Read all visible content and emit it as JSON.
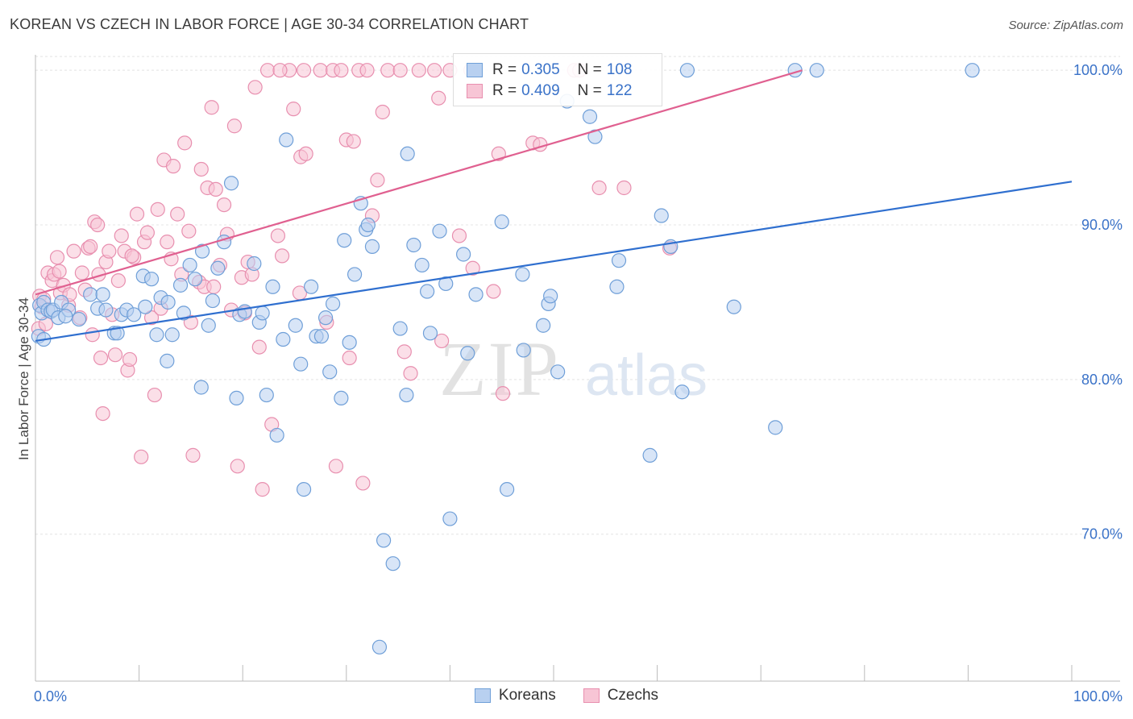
{
  "title": "KOREAN VS CZECH IN LABOR FORCE | AGE 30-34 CORRELATION CHART",
  "source": "Source: ZipAtlas.com",
  "watermark": {
    "zip": "ZIP",
    "atlas": "atlas"
  },
  "legend": {
    "r_label": "R =",
    "n_label": "N =",
    "items": [
      {
        "name": "Koreans",
        "r": "0.305",
        "n": "108",
        "fill": "#b8d0f0",
        "stroke": "#6f9fd8"
      },
      {
        "name": "Czechs",
        "r": "0.409",
        "n": "122",
        "fill": "#f7c5d5",
        "stroke": "#e88faf"
      }
    ]
  },
  "chart_data": {
    "type": "scatter",
    "title": "KOREAN VS CZECH IN LABOR FORCE | AGE 30-34 CORRELATION CHART",
    "xlabel": "",
    "ylabel": "In Labor Force | Age 30-34",
    "xlim": [
      0,
      100
    ],
    "ylim": [
      60.5,
      101
    ],
    "x_tick_labels": [
      "0.0%",
      "100.0%"
    ],
    "y_tick_labels": [
      "70.0%",
      "80.0%",
      "90.0%",
      "100.0%"
    ],
    "y_ticks": [
      70,
      80,
      90,
      100
    ],
    "grid": true,
    "legend_position": "top-center",
    "series": [
      {
        "name": "Koreans",
        "color": "#6f9fd8",
        "fill": "#b8d0f0",
        "trend": {
          "x": [
            0,
            100
          ],
          "y": [
            82.5,
            92.8
          ]
        },
        "points": [
          [
            0.3,
            82.8
          ],
          [
            0.4,
            84.8
          ],
          [
            0.6,
            84.3
          ],
          [
            0.8,
            85.0
          ],
          [
            1.2,
            84.5
          ],
          [
            1.5,
            84.4
          ],
          [
            1.7,
            84.5
          ],
          [
            2.2,
            84.0
          ],
          [
            2.5,
            85.0
          ],
          [
            3.2,
            84.5
          ],
          [
            4.2,
            83.9
          ],
          [
            5.3,
            85.5
          ],
          [
            6.0,
            84.6
          ],
          [
            6.5,
            85.5
          ],
          [
            6.8,
            84.5
          ],
          [
            7.6,
            83.0
          ],
          [
            7.9,
            83.0
          ],
          [
            8.3,
            84.2
          ],
          [
            8.8,
            84.5
          ],
          [
            9.5,
            84.2
          ],
          [
            10.4,
            86.7
          ],
          [
            10.6,
            84.7
          ],
          [
            11.2,
            86.5
          ],
          [
            11.7,
            82.9
          ],
          [
            12.1,
            85.3
          ],
          [
            12.7,
            81.2
          ],
          [
            13.2,
            82.9
          ],
          [
            14.0,
            86.1
          ],
          [
            14.3,
            84.3
          ],
          [
            14.9,
            87.4
          ],
          [
            15.4,
            86.5
          ],
          [
            16.1,
            88.3
          ],
          [
            16.0,
            79.5
          ],
          [
            16.7,
            83.5
          ],
          [
            17.1,
            85.1
          ],
          [
            17.6,
            87.2
          ],
          [
            18.2,
            88.9
          ],
          [
            18.9,
            92.7
          ],
          [
            19.4,
            78.8
          ],
          [
            19.7,
            84.2
          ],
          [
            20.2,
            84.4
          ],
          [
            21.1,
            87.5
          ],
          [
            21.6,
            83.7
          ],
          [
            21.9,
            84.3
          ],
          [
            22.3,
            79.0
          ],
          [
            22.9,
            86.0
          ],
          [
            23.3,
            76.4
          ],
          [
            23.9,
            82.6
          ],
          [
            24.2,
            95.5
          ],
          [
            25.1,
            83.5
          ],
          [
            25.6,
            81.0
          ],
          [
            25.9,
            72.9
          ],
          [
            26.6,
            86.0
          ],
          [
            27.1,
            82.8
          ],
          [
            27.6,
            82.8
          ],
          [
            28.0,
            84.0
          ],
          [
            28.4,
            80.5
          ],
          [
            28.7,
            84.9
          ],
          [
            29.5,
            78.8
          ],
          [
            29.8,
            89.0
          ],
          [
            30.3,
            82.4
          ],
          [
            30.8,
            86.8
          ],
          [
            31.4,
            91.4
          ],
          [
            31.9,
            89.7
          ],
          [
            32.1,
            90.0
          ],
          [
            32.5,
            88.6
          ],
          [
            33.2,
            62.7
          ],
          [
            33.6,
            69.6
          ],
          [
            34.5,
            68.1
          ],
          [
            35.2,
            83.3
          ],
          [
            35.8,
            79.0
          ],
          [
            35.9,
            94.6
          ],
          [
            37.3,
            87.4
          ],
          [
            37.8,
            85.7
          ],
          [
            38.1,
            83.0
          ],
          [
            39.0,
            89.6
          ],
          [
            39.6,
            86.2
          ],
          [
            40.0,
            71.0
          ],
          [
            41.3,
            88.1
          ],
          [
            41.7,
            81.7
          ],
          [
            42.5,
            85.5
          ],
          [
            45.0,
            90.2
          ],
          [
            45.5,
            72.9
          ],
          [
            47.0,
            86.8
          ],
          [
            47.1,
            81.9
          ],
          [
            49.0,
            83.5
          ],
          [
            49.5,
            84.9
          ],
          [
            49.7,
            85.4
          ],
          [
            50.4,
            80.5
          ],
          [
            51.3,
            98.0
          ],
          [
            53.5,
            97.0
          ],
          [
            54.0,
            95.7
          ],
          [
            56.1,
            86.0
          ],
          [
            56.3,
            87.7
          ],
          [
            59.3,
            75.1
          ],
          [
            60.4,
            90.6
          ],
          [
            61.3,
            88.6
          ],
          [
            62.4,
            79.2
          ],
          [
            62.9,
            100.0
          ],
          [
            67.4,
            84.7
          ],
          [
            71.4,
            76.9
          ],
          [
            73.3,
            100.0
          ],
          [
            75.4,
            100.0
          ],
          [
            90.4,
            100.0
          ],
          [
            0.8,
            82.6
          ],
          [
            2.9,
            84.1
          ],
          [
            12.8,
            85.0
          ],
          [
            36.5,
            88.7
          ]
        ]
      },
      {
        "name": "Czechs",
        "color": "#e88faf",
        "fill": "#f7c5d5",
        "trend": {
          "x": [
            0,
            74
          ],
          "y": [
            85.5,
            100.0
          ]
        },
        "points": [
          [
            0.3,
            83.3
          ],
          [
            0.4,
            85.4
          ],
          [
            0.6,
            84.7
          ],
          [
            1.2,
            86.9
          ],
          [
            1.6,
            86.4
          ],
          [
            1.8,
            86.8
          ],
          [
            2.1,
            87.9
          ],
          [
            2.4,
            85.6
          ],
          [
            2.7,
            86.1
          ],
          [
            3.2,
            84.8
          ],
          [
            3.7,
            88.3
          ],
          [
            4.3,
            84.0
          ],
          [
            4.5,
            86.9
          ],
          [
            4.8,
            85.8
          ],
          [
            5.1,
            88.5
          ],
          [
            5.3,
            88.6
          ],
          [
            5.7,
            90.2
          ],
          [
            6.0,
            90.0
          ],
          [
            6.1,
            86.8
          ],
          [
            6.3,
            81.4
          ],
          [
            6.5,
            77.8
          ],
          [
            6.8,
            87.6
          ],
          [
            7.1,
            88.3
          ],
          [
            7.4,
            84.2
          ],
          [
            7.7,
            81.6
          ],
          [
            8.0,
            86.4
          ],
          [
            8.3,
            89.3
          ],
          [
            8.6,
            88.3
          ],
          [
            8.9,
            80.6
          ],
          [
            9.1,
            81.3
          ],
          [
            9.5,
            87.9
          ],
          [
            9.8,
            90.7
          ],
          [
            10.2,
            75.0
          ],
          [
            10.5,
            88.9
          ],
          [
            10.8,
            89.5
          ],
          [
            11.2,
            84.0
          ],
          [
            11.5,
            79.0
          ],
          [
            11.8,
            91.0
          ],
          [
            12.1,
            84.6
          ],
          [
            12.4,
            94.2
          ],
          [
            12.7,
            88.9
          ],
          [
            13.1,
            87.8
          ],
          [
            13.3,
            93.8
          ],
          [
            13.7,
            90.7
          ],
          [
            14.1,
            86.8
          ],
          [
            14.4,
            95.3
          ],
          [
            14.8,
            89.6
          ],
          [
            15.0,
            83.7
          ],
          [
            15.2,
            75.1
          ],
          [
            15.8,
            86.3
          ],
          [
            16.0,
            93.6
          ],
          [
            16.3,
            86.0
          ],
          [
            16.6,
            92.4
          ],
          [
            17.0,
            97.6
          ],
          [
            17.4,
            92.3
          ],
          [
            17.8,
            87.4
          ],
          [
            18.2,
            91.3
          ],
          [
            18.5,
            89.4
          ],
          [
            18.9,
            84.5
          ],
          [
            19.2,
            96.4
          ],
          [
            19.5,
            74.4
          ],
          [
            19.9,
            86.6
          ],
          [
            20.2,
            84.3
          ],
          [
            20.5,
            87.6
          ],
          [
            20.9,
            86.8
          ],
          [
            21.2,
            98.9
          ],
          [
            21.6,
            82.1
          ],
          [
            21.9,
            72.9
          ],
          [
            22.4,
            100.0
          ],
          [
            22.8,
            77.1
          ],
          [
            23.4,
            89.3
          ],
          [
            23.8,
            88.0
          ],
          [
            24.5,
            100.0
          ],
          [
            24.9,
            97.5
          ],
          [
            25.6,
            94.4
          ],
          [
            26.1,
            94.6
          ],
          [
            25.5,
            85.6
          ],
          [
            27.5,
            100.0
          ],
          [
            28.1,
            83.7
          ],
          [
            28.7,
            100.0
          ],
          [
            29.0,
            74.4
          ],
          [
            29.5,
            100.0
          ],
          [
            30.0,
            95.5
          ],
          [
            30.3,
            81.4
          ],
          [
            30.7,
            95.4
          ],
          [
            31.2,
            100.0
          ],
          [
            31.6,
            73.3
          ],
          [
            32.0,
            100.0
          ],
          [
            32.5,
            90.6
          ],
          [
            33.0,
            92.9
          ],
          [
            33.5,
            97.3
          ],
          [
            34.0,
            100.0
          ],
          [
            35.2,
            100.0
          ],
          [
            35.6,
            81.8
          ],
          [
            36.2,
            80.4
          ],
          [
            37.0,
            100.0
          ],
          [
            38.5,
            100.0
          ],
          [
            38.9,
            98.2
          ],
          [
            39.2,
            82.5
          ],
          [
            40.0,
            100.0
          ],
          [
            40.9,
            89.3
          ],
          [
            42.0,
            100.0
          ],
          [
            42.2,
            87.2
          ],
          [
            44.2,
            85.7
          ],
          [
            44.7,
            94.6
          ],
          [
            45.1,
            79.1
          ],
          [
            48.0,
            95.3
          ],
          [
            48.7,
            95.2
          ],
          [
            52.0,
            100.0
          ],
          [
            52.5,
            100.0
          ],
          [
            54.4,
            92.4
          ],
          [
            56.8,
            92.4
          ],
          [
            61.2,
            88.5
          ],
          [
            0.8,
            85.2
          ],
          [
            1.0,
            83.6
          ],
          [
            2.3,
            87.0
          ],
          [
            3.3,
            85.5
          ],
          [
            5.5,
            82.9
          ],
          [
            9.3,
            88.0
          ],
          [
            17.2,
            86.0
          ],
          [
            23.6,
            100.0
          ],
          [
            25.9,
            100.0
          ]
        ]
      }
    ]
  }
}
